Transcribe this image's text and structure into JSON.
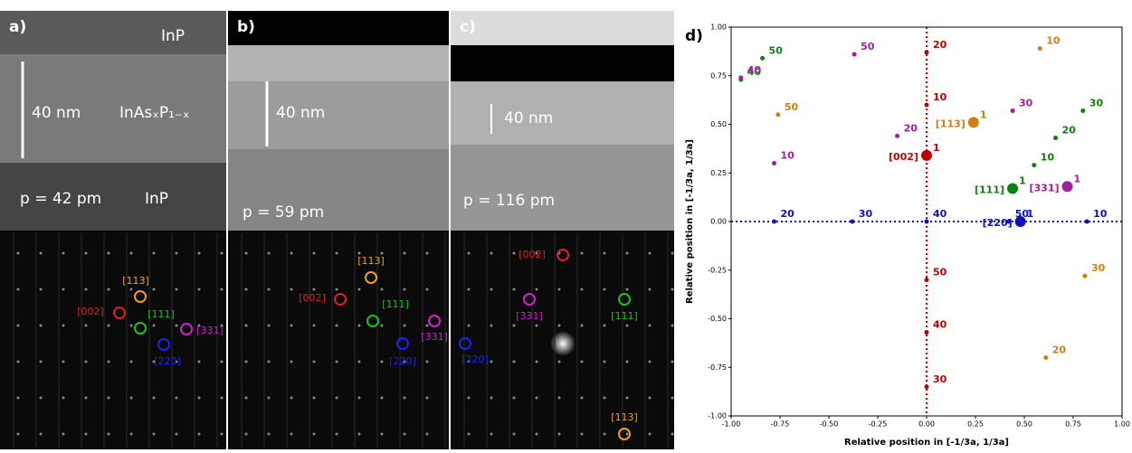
{
  "panels": [
    {
      "label": "a)",
      "texts": [
        "InP",
        "40 nm",
        "InAsₓP₁₋ₓ",
        "p = 42 pm",
        "InP"
      ],
      "spots": [
        {
          "label": "[113]",
          "color": "#f0a020"
        },
        {
          "label": "[002]",
          "color": "#e02020"
        },
        {
          "label": "[111]",
          "color": "#20c020"
        },
        {
          "label": "[331]",
          "color": "#d020d0"
        },
        {
          "label": "[220]",
          "color": "#2020f0"
        }
      ]
    },
    {
      "label": "b)",
      "texts": [
        "40 nm",
        "p = 59 pm"
      ],
      "spots": [
        {
          "label": "[113]",
          "color": "#f0a020"
        },
        {
          "label": "[002]",
          "color": "#e02020"
        },
        {
          "label": "[111]",
          "color": "#20c020"
        },
        {
          "label": "[331]",
          "color": "#d020d0"
        },
        {
          "label": "[220]",
          "color": "#2020f0"
        }
      ]
    },
    {
      "label": "c)",
      "texts": [
        "40 nm",
        "p = 116 pm"
      ],
      "spots": [
        {
          "label": "[002]",
          "color": "#e02020"
        },
        {
          "label": "[331]",
          "color": "#d020d0"
        },
        {
          "label": "[111]",
          "color": "#20c020"
        },
        {
          "label": "[220]",
          "color": "#2020f0"
        },
        {
          "label": "[113]",
          "color": "#f0a020"
        }
      ]
    }
  ],
  "chart_data": {
    "type": "scatter",
    "title": "d)",
    "xlabel": "Relative position in [-1/3a, 1/3a]",
    "ylabel": "Relative position in [-1/3a, 1/3a]",
    "xlim": [
      -1,
      1
    ],
    "ylim": [
      -1,
      1
    ],
    "xticks": [
      {
        "value": -1,
        "label": "-1.00"
      },
      {
        "value": -0.75,
        "label": "-0.75"
      },
      {
        "value": -0.5,
        "label": "-0.50"
      },
      {
        "value": -0.25,
        "label": "-0.25"
      },
      {
        "value": 0,
        "label": "0.00"
      },
      {
        "value": 0.25,
        "label": "0.25"
      },
      {
        "value": 0.5,
        "label": "0.50"
      },
      {
        "value": 0.75,
        "label": "0.75"
      },
      {
        "value": 1,
        "label": "1.00"
      }
    ],
    "yticks": [
      {
        "value": -1,
        "label": "-1.00"
      },
      {
        "value": -0.75,
        "label": "-0.75"
      },
      {
        "value": -0.5,
        "label": "-0.50"
      },
      {
        "value": -0.25,
        "label": "-0.25"
      },
      {
        "value": 0,
        "label": "0.00"
      },
      {
        "value": 0.25,
        "label": "0.25"
      },
      {
        "value": 0.5,
        "label": "0.50"
      },
      {
        "value": 0.75,
        "label": "0.75"
      },
      {
        "value": 1,
        "label": "1.00"
      }
    ],
    "series": [
      {
        "name": "[002]",
        "color": "#c00000",
        "point_labels": [
          "1",
          "10",
          "20",
          "30",
          "40",
          "50"
        ],
        "x": [
          0,
          0,
          0,
          0,
          0,
          0
        ],
        "y": [
          0.34,
          0.6,
          0.87,
          -0.85,
          -0.57,
          -0.3
        ]
      },
      {
        "name": "[220]",
        "color": "#1010c0",
        "point_labels": [
          "1",
          "10",
          "20",
          "30",
          "40",
          "50"
        ],
        "x": [
          0.48,
          0.82,
          -0.78,
          -0.38,
          0,
          0.42
        ],
        "y": [
          0,
          0,
          0,
          0,
          0,
          0
        ]
      },
      {
        "name": "[113]",
        "color": "#d08010",
        "point_labels": [
          "1",
          "10",
          "20",
          "30",
          "50"
        ],
        "x": [
          0.24,
          0.58,
          0.61,
          0.81,
          -0.76
        ],
        "y": [
          0.51,
          0.89,
          -0.7,
          -0.28,
          0.55
        ]
      },
      {
        "name": "[111]",
        "color": "#108010",
        "point_labels": [
          "1",
          "10",
          "20",
          "30",
          "40",
          "50"
        ],
        "x": [
          0.44,
          0.55,
          0.66,
          0.8,
          -0.95,
          -0.84
        ],
        "y": [
          0.17,
          0.29,
          0.43,
          0.57,
          0.73,
          0.84
        ]
      },
      {
        "name": "[331]",
        "color": "#a020a0",
        "point_labels": [
          "1",
          "10",
          "20",
          "30",
          "40",
          "50"
        ],
        "x": [
          0.72,
          -0.78,
          -0.15,
          0.44,
          -0.95,
          -0.37
        ],
        "y": [
          0.18,
          0.3,
          0.44,
          0.57,
          0.74,
          0.86
        ]
      }
    ]
  }
}
